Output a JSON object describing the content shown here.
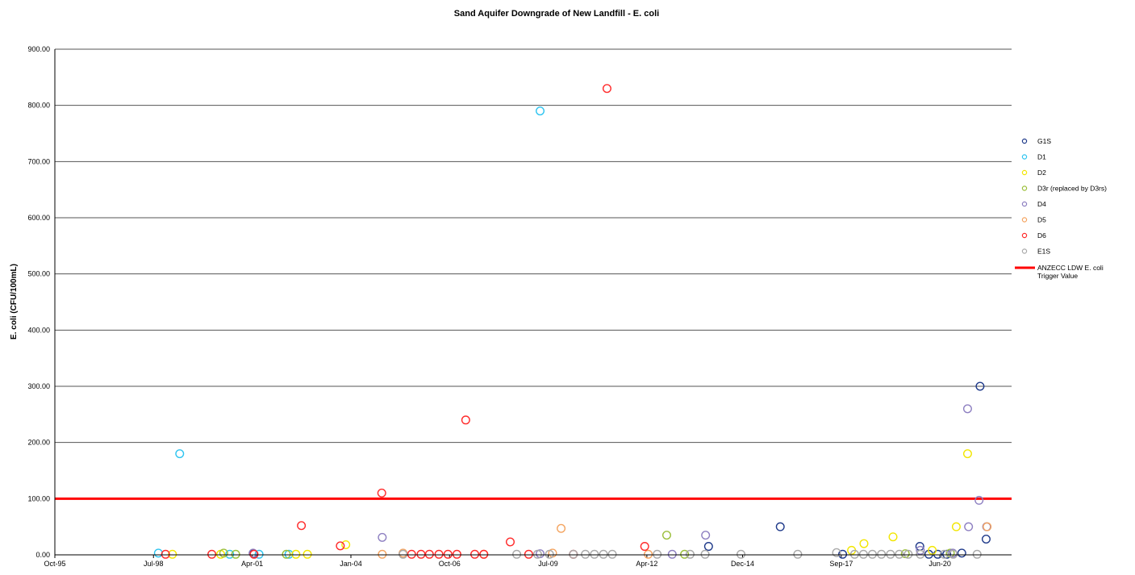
{
  "chart_data": {
    "type": "scatter",
    "title": "Sand Aquifer Downgrade of New Landfill - E. coli",
    "ylabel": "E. coli (CFU/100mL)",
    "xlabel": "",
    "x_is_date": true,
    "xlim": [
      "1995-10-01",
      "2022-06-01"
    ],
    "ylim": [
      0,
      900
    ],
    "grid": true,
    "legend_position": "right",
    "x_ticks": [
      {
        "date": "1995-10-01",
        "label": "Oct-95"
      },
      {
        "date": "1998-07-01",
        "label": "Jul-98"
      },
      {
        "date": "2001-04-01",
        "label": "Apr-01"
      },
      {
        "date": "2004-01-01",
        "label": "Jan-04"
      },
      {
        "date": "2006-10-01",
        "label": "Oct-06"
      },
      {
        "date": "2009-07-01",
        "label": "Jul-09"
      },
      {
        "date": "2012-04-01",
        "label": "Apr-12"
      },
      {
        "date": "2014-12-01",
        "label": "Dec-14"
      },
      {
        "date": "2017-09-01",
        "label": "Sep-17"
      },
      {
        "date": "2020-06-01",
        "label": "Jun-20"
      }
    ],
    "y_ticks": [
      {
        "value": 0,
        "label": "0.00"
      },
      {
        "value": 100,
        "label": "100.00"
      },
      {
        "value": 200,
        "label": "200.00"
      },
      {
        "value": 300,
        "label": "300.00"
      },
      {
        "value": 400,
        "label": "400.00"
      },
      {
        "value": 500,
        "label": "500.00"
      },
      {
        "value": 600,
        "label": "600.00"
      },
      {
        "value": 700,
        "label": "700.00"
      },
      {
        "value": 800,
        "label": "800.00"
      },
      {
        "value": 900,
        "label": "900.00"
      }
    ],
    "reference_line": {
      "name": "ANZECC LDW E. coli Trigger Value",
      "value": 100,
      "color": "#ff0000"
    },
    "series": [
      {
        "name": "G1S",
        "color": "#1f3a8a",
        "points": [
          [
            "2001-04-15",
            2
          ],
          [
            "2013-12-20",
            15
          ],
          [
            "2015-12-20",
            50
          ],
          [
            "2017-09-15",
            1
          ],
          [
            "2019-11-10",
            15
          ],
          [
            "2020-02-10",
            1
          ],
          [
            "2020-05-10",
            1
          ],
          [
            "2020-08-10",
            1
          ],
          [
            "2021-01-10",
            3
          ],
          [
            "2021-07-15",
            300
          ],
          [
            "2021-09-15",
            28
          ]
        ]
      },
      {
        "name": "D1",
        "color": "#2ec4f0",
        "points": [
          [
            "1998-08-20",
            3
          ],
          [
            "1999-03-25",
            180
          ],
          [
            "2000-08-15",
            1
          ],
          [
            "2001-06-10",
            1
          ],
          [
            "2002-04-10",
            1
          ],
          [
            "2009-04-10",
            790
          ]
        ]
      },
      {
        "name": "D2",
        "color": "#f2e600",
        "points": [
          [
            "1999-01-10",
            1
          ],
          [
            "2000-05-15",
            1
          ],
          [
            "2002-06-20",
            1
          ],
          [
            "2002-10-15",
            1
          ],
          [
            "2003-11-10",
            18
          ],
          [
            "2017-12-15",
            8
          ],
          [
            "2018-04-20",
            20
          ],
          [
            "2019-02-10",
            32
          ],
          [
            "2020-03-15",
            8
          ],
          [
            "2020-11-15",
            50
          ],
          [
            "2021-03-10",
            180
          ]
        ]
      },
      {
        "name": "D3r (replaced by D3rs)",
        "color": "#9bbf3a",
        "points": [
          [
            "2000-06-15",
            3
          ],
          [
            "2000-10-15",
            1
          ],
          [
            "2002-03-15",
            1
          ],
          [
            "2012-10-20",
            35
          ],
          [
            "2013-04-20",
            1
          ],
          [
            "2019-06-15",
            2
          ],
          [
            "2020-09-15",
            3
          ]
        ]
      },
      {
        "name": "D4",
        "color": "#8d7fc1",
        "points": [
          [
            "2001-04-10",
            3
          ],
          [
            "2004-11-15",
            31
          ],
          [
            "2009-04-10",
            2
          ],
          [
            "2012-12-15",
            1
          ],
          [
            "2013-11-20",
            35
          ],
          [
            "2019-11-15",
            8
          ],
          [
            "2020-10-10",
            3
          ],
          [
            "2021-03-10",
            260
          ],
          [
            "2021-03-20",
            50
          ],
          [
            "2021-07-05",
            97
          ],
          [
            "2021-09-20",
            50
          ]
        ]
      },
      {
        "name": "D5",
        "color": "#f4a460",
        "points": [
          [
            "2004-11-15",
            1
          ],
          [
            "2005-06-15",
            3
          ],
          [
            "2007-09-15",
            1
          ],
          [
            "2009-08-15",
            3
          ],
          [
            "2009-11-10",
            47
          ],
          [
            "2012-04-15",
            1
          ],
          [
            "2021-09-25",
            50
          ]
        ]
      },
      {
        "name": "D6",
        "color": "#ff2a2a",
        "points": [
          [
            "1998-11-01",
            1
          ],
          [
            "2000-02-15",
            1
          ],
          [
            "2001-04-20",
            1
          ],
          [
            "2002-08-15",
            52
          ],
          [
            "2003-09-15",
            16
          ],
          [
            "2004-11-10",
            110
          ],
          [
            "2005-09-10",
            1
          ],
          [
            "2005-12-15",
            1
          ],
          [
            "2006-03-10",
            1
          ],
          [
            "2006-06-15",
            1
          ],
          [
            "2006-09-15",
            1
          ],
          [
            "2006-12-15",
            1
          ],
          [
            "2007-03-15",
            240
          ],
          [
            "2007-06-15",
            1
          ],
          [
            "2007-09-15",
            1
          ],
          [
            "2008-06-10",
            23
          ],
          [
            "2008-12-15",
            1
          ],
          [
            "2010-03-15",
            1
          ],
          [
            "2011-02-20",
            830
          ],
          [
            "2012-03-10",
            15
          ]
        ]
      },
      {
        "name": "E1S",
        "color": "#a9a9a9",
        "points": [
          [
            "2005-06-15",
            1
          ],
          [
            "2008-08-15",
            1
          ],
          [
            "2009-03-15",
            1
          ],
          [
            "2009-07-15",
            1
          ],
          [
            "2010-03-15",
            1
          ],
          [
            "2010-07-15",
            1
          ],
          [
            "2010-10-15",
            1
          ],
          [
            "2011-01-15",
            1
          ],
          [
            "2011-04-15",
            1
          ],
          [
            "2012-07-15",
            1
          ],
          [
            "2013-06-15",
            1
          ],
          [
            "2013-11-15",
            1
          ],
          [
            "2014-11-15",
            1
          ],
          [
            "2016-06-15",
            1
          ],
          [
            "2017-07-15",
            4
          ],
          [
            "2018-01-15",
            1
          ],
          [
            "2018-04-15",
            1
          ],
          [
            "2018-07-15",
            1
          ],
          [
            "2018-10-15",
            1
          ],
          [
            "2019-01-15",
            1
          ],
          [
            "2019-04-15",
            1
          ],
          [
            "2019-07-15",
            1
          ],
          [
            "2019-11-15",
            1
          ],
          [
            "2020-07-15",
            1
          ],
          [
            "2020-10-15",
            1
          ],
          [
            "2021-06-15",
            1
          ]
        ]
      }
    ]
  }
}
